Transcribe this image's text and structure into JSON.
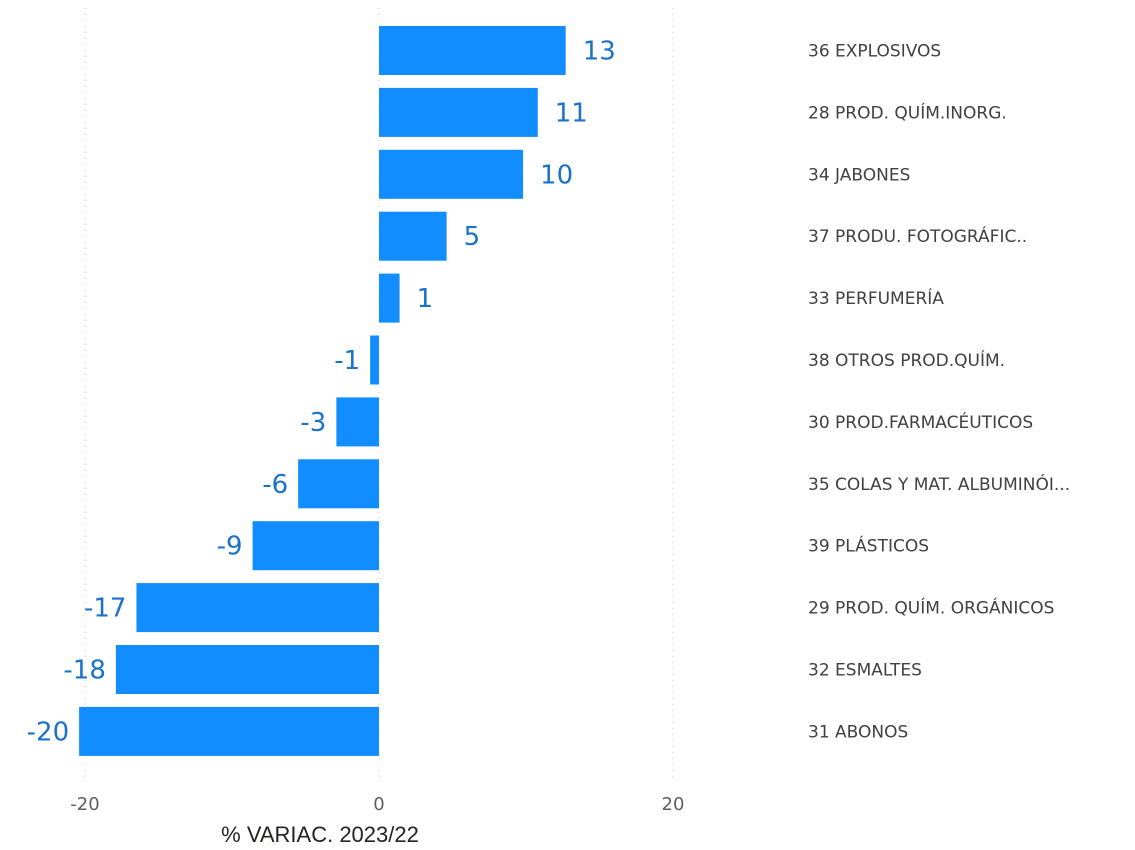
{
  "chart_data": {
    "type": "bar",
    "orientation": "horizontal",
    "xlabel": "% VARIAC. 2023/22",
    "ylabel": "",
    "title": "",
    "xlim": [
      -20,
      20
    ],
    "xticks": [
      -20,
      0,
      20
    ],
    "grid": true,
    "categories": [
      "36 EXPLOSIVOS",
      "28 PROD. QUÍM.INORG.",
      "34 JABONES",
      "37 PRODU. FOTOGRÁFIC..",
      "33 PERFUMERÍA",
      "38 OTROS PROD.QUÍM.",
      "30 PROD.FARMACÉUTICOS",
      "35 COLAS Y MAT. ALBUMINÓI...",
      "39 PLÁSTICOS",
      "29 PROD. QUÍM. ORGÁNICOS",
      "32 ESMALTES",
      "31 ABONOS"
    ],
    "values": [
      12.7,
      10.8,
      9.8,
      4.6,
      1.4,
      -0.6,
      -2.9,
      -5.5,
      -8.6,
      -16.5,
      -17.9,
      -20.4
    ],
    "labels": [
      "13",
      "11",
      "10",
      "5",
      "1",
      "-1",
      "-3",
      "-6",
      "-9",
      "-17",
      "-18",
      "-20"
    ],
    "bar_color": "#118dff",
    "label_color": "#1a72c9"
  }
}
